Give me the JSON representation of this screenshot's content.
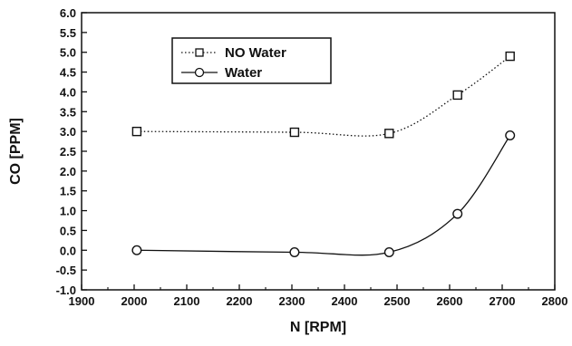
{
  "chart_data": {
    "type": "line",
    "xlabel": "N [RPM]",
    "ylabel": "CO [PPM]",
    "xlim": [
      1900,
      2800
    ],
    "ylim": [
      -1.0,
      6.0
    ],
    "x_ticks": [
      "1900",
      "2000",
      "2100",
      "2200",
      "2300",
      "2400",
      "2500",
      "2600",
      "2700",
      "2800"
    ],
    "y_ticks": [
      "-1.0",
      "-0.5",
      "0.0",
      "0.5",
      "1.0",
      "1.5",
      "2.0",
      "2.5",
      "3.0",
      "3.5",
      "4.0",
      "4.5",
      "5.0",
      "5.5",
      "6.0"
    ],
    "grid": false,
    "legend_position": "top-left",
    "series": [
      {
        "name": "NO Water",
        "marker": "square",
        "line_style": "dotted",
        "color": "#111111",
        "x": [
          2005,
          2305,
          2485,
          2615,
          2715
        ],
        "y": [
          3.0,
          2.98,
          2.95,
          3.92,
          4.9
        ]
      },
      {
        "name": "Water",
        "marker": "circle",
        "line_style": "solid",
        "color": "#111111",
        "x": [
          2005,
          2305,
          2485,
          2615,
          2715
        ],
        "y": [
          0.0,
          -0.05,
          -0.05,
          0.92,
          2.9
        ]
      }
    ]
  }
}
